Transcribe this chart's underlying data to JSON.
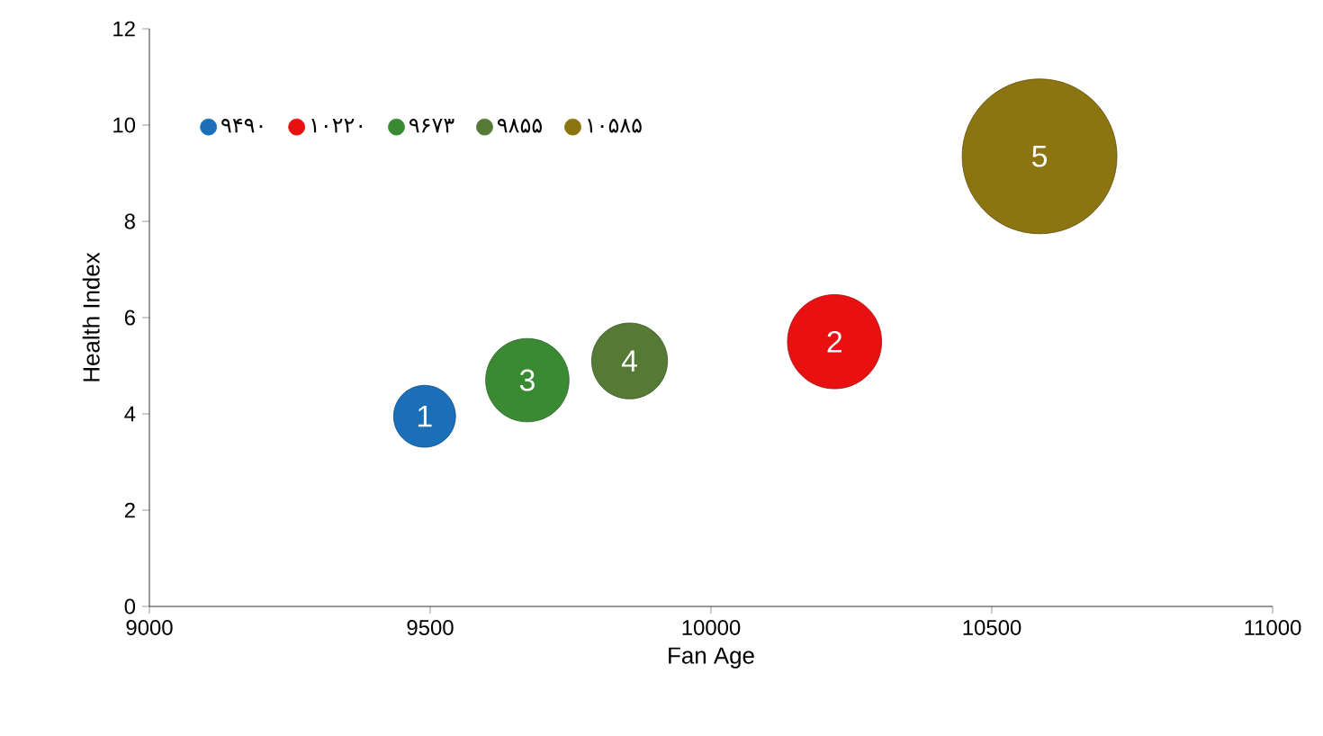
{
  "chart_data": {
    "type": "bubble",
    "xlabel": "Fan Age",
    "ylabel": "Health Index",
    "xlim": [
      9000,
      11000
    ],
    "xticks": [
      9000,
      9500,
      10000,
      10500,
      11000
    ],
    "ylim": [
      0,
      12
    ],
    "yticks": [
      0,
      2,
      4,
      6,
      8,
      10,
      12
    ],
    "grid": false,
    "legend": "top left",
    "series": [
      {
        "name": "۹۴۹۰",
        "color": "#1a6fb8",
        "x": [
          9490
        ],
        "values": [
          3.95
        ],
        "sizes": [
          0.16
        ]
      },
      {
        "name": "۱۰۲۲۰",
        "color": "#e81010",
        "x": [
          10220
        ],
        "values": [
          5.5
        ],
        "sizes": [
          0.37
        ]
      },
      {
        "name": "۹۶۷۳",
        "color": "#3a8a34",
        "x": [
          9673
        ],
        "values": [
          4.7
        ],
        "sizes": [
          0.29
        ]
      },
      {
        "name": "۹۸۵۵",
        "color": "#557a35",
        "x": [
          9855
        ],
        "values": [
          5.1
        ],
        "sizes": [
          0.24
        ]
      },
      {
        "name": "۱۰۵۸۵",
        "color": "#8c7410",
        "x": [
          10585
        ],
        "values": [
          9.35
        ],
        "sizes": [
          1
        ]
      }
    ],
    "annotations": [
      {
        "text": "1",
        "x": 9490,
        "y": 3.95
      },
      {
        "text": "2",
        "x": 10220,
        "y": 5.5
      },
      {
        "text": "3",
        "x": 9673,
        "y": 4.7
      },
      {
        "text": "4",
        "x": 9855,
        "y": 5.1
      },
      {
        "text": "5",
        "x": 10585,
        "y": 9.35
      }
    ]
  }
}
